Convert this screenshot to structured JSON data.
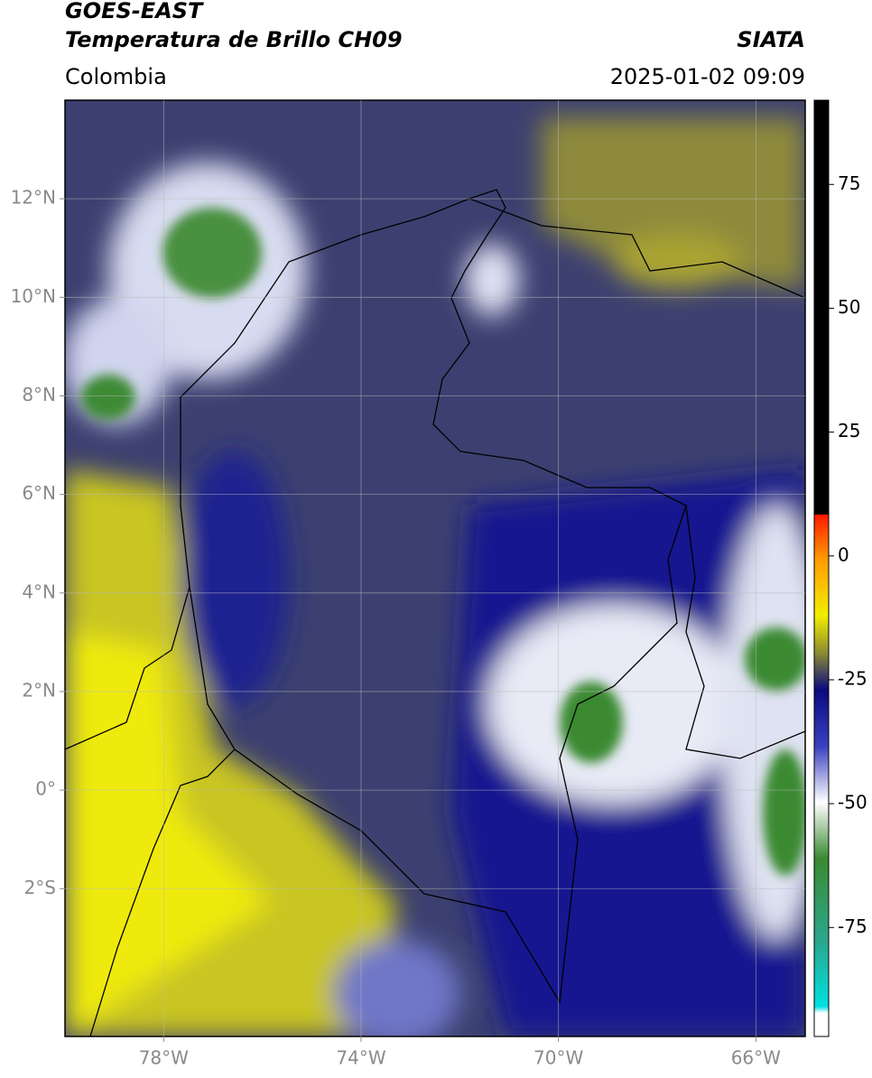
{
  "header": {
    "title": "GOES-EAST",
    "subtitle": "Temperatura de Brillo CH09",
    "region": "Colombia",
    "source": "SIATA",
    "datetime": "2025-01-02 09:09"
  },
  "map": {
    "xlim": [
      -80,
      -65
    ],
    "ylim": [
      -5,
      14
    ],
    "xticks": [
      {
        "value": -78,
        "label": "78°W"
      },
      {
        "value": -74,
        "label": "74°W"
      },
      {
        "value": -70,
        "label": "70°W"
      },
      {
        "value": -66,
        "label": "66°W"
      }
    ],
    "yticks": [
      {
        "value": 12,
        "label": "12°N"
      },
      {
        "value": 10,
        "label": "10°N"
      },
      {
        "value": 8,
        "label": "8°N"
      },
      {
        "value": 6,
        "label": "6°N"
      },
      {
        "value": 4,
        "label": "4°N"
      },
      {
        "value": 2,
        "label": "2°N"
      },
      {
        "value": 0,
        "label": "0°"
      },
      {
        "value": -2,
        "label": "2°S"
      }
    ],
    "grid": true
  },
  "colorbar": {
    "lim": [
      -97,
      92
    ],
    "ticks": [
      75,
      50,
      25,
      0,
      -25,
      -50,
      -75
    ]
  }
}
